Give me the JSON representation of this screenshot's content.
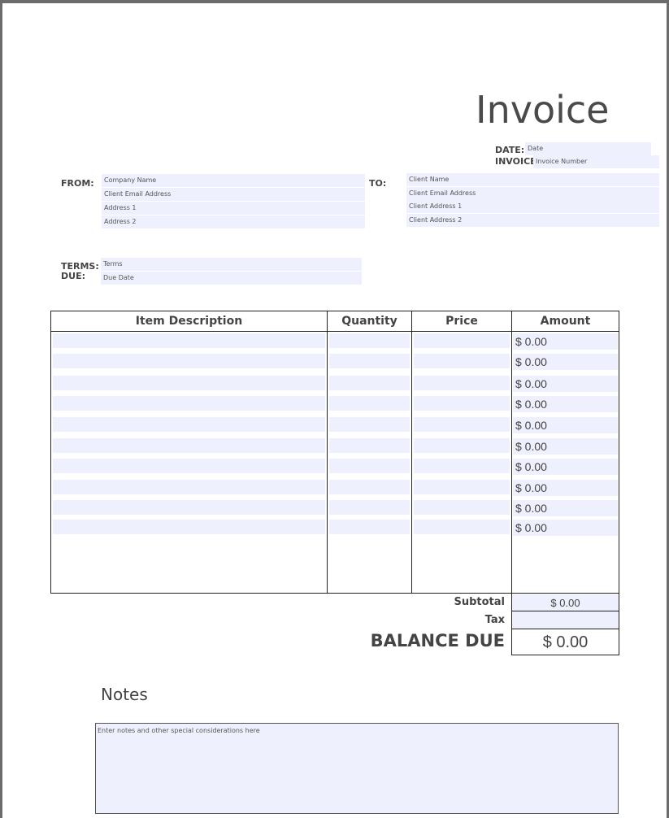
{
  "title": "Invoice",
  "date": {
    "label": "DATE:",
    "placeholder": "Date"
  },
  "invoice": {
    "label": "INVOICE",
    "placeholder": "Invoice Number"
  },
  "from": {
    "label": "FROM:",
    "fields": [
      "Company Name",
      "Client Email Address",
      "Address 1",
      "Address 2"
    ]
  },
  "to": {
    "label": "TO:",
    "fields": [
      "Client Name",
      "Client Email Address",
      "Client Address 1",
      "Client Address 2"
    ]
  },
  "terms": {
    "label": "TERMS:",
    "placeholder": "Terms"
  },
  "due": {
    "label": "DUE:",
    "placeholder": "Due Date"
  },
  "table": {
    "headers": [
      "Item Description",
      "Quantity",
      "Price",
      "Amount"
    ],
    "amounts": [
      "$ 0.00",
      "$ 0.00",
      "$ 0.00",
      "$ 0.00",
      "$ 0.00",
      "$ 0.00",
      "$ 0.00",
      "$ 0.00",
      "$ 0.00",
      "$ 0.00"
    ]
  },
  "totals": {
    "subtotal": {
      "label": "Subtotal",
      "value": "$ 0.00"
    },
    "tax": {
      "label": "Tax"
    },
    "balance_due": {
      "label": "BALANCE DUE",
      "value": "$ 0.00"
    }
  },
  "notes": {
    "title": "Notes",
    "placeholder": "Enter notes and other special considerations here"
  }
}
